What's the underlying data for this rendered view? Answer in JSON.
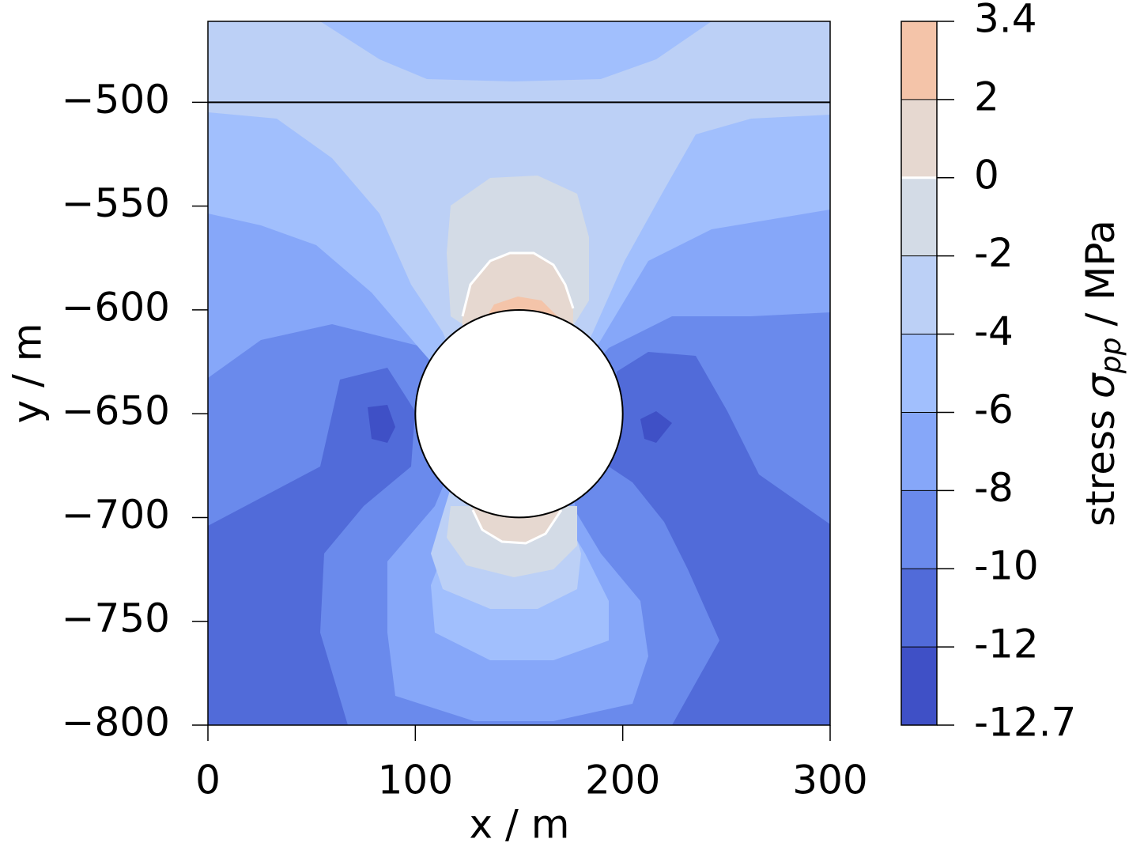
{
  "chart_data": {
    "type": "contourf",
    "xlabel": "x / m",
    "ylabel": "y / m",
    "xlim": [
      0,
      300
    ],
    "ylim": [
      -800,
      -461
    ],
    "xticks": [
      0,
      100,
      200,
      300
    ],
    "yticks": [
      {
        "value": -800,
        "label": "−800"
      },
      {
        "value": -750,
        "label": "−750"
      },
      {
        "value": -700,
        "label": "−700"
      },
      {
        "value": -650,
        "label": "−650"
      },
      {
        "value": -600,
        "label": "−600"
      },
      {
        "value": -550,
        "label": "−550"
      },
      {
        "value": -500,
        "label": "−500"
      }
    ],
    "levels": [
      -12.7,
      -12,
      -10,
      -8,
      -6,
      -4,
      -2,
      0,
      2,
      3.4
    ],
    "colors": [
      "#3f50c6",
      "#516bd9",
      "#6a8aec",
      "#86a7f9",
      "#a1bffd",
      "#bcd0f6",
      "#d3dbe6",
      "#e6d8d0",
      "#f4c4a9"
    ],
    "contour_line_level": 0,
    "colorbar_label": [
      "stress",
      "σ",
      "pp",
      "/ MPa"
    ],
    "cavity": {
      "center": [
        150,
        -650
      ],
      "radius": 50
    },
    "interface_y": -500
  }
}
